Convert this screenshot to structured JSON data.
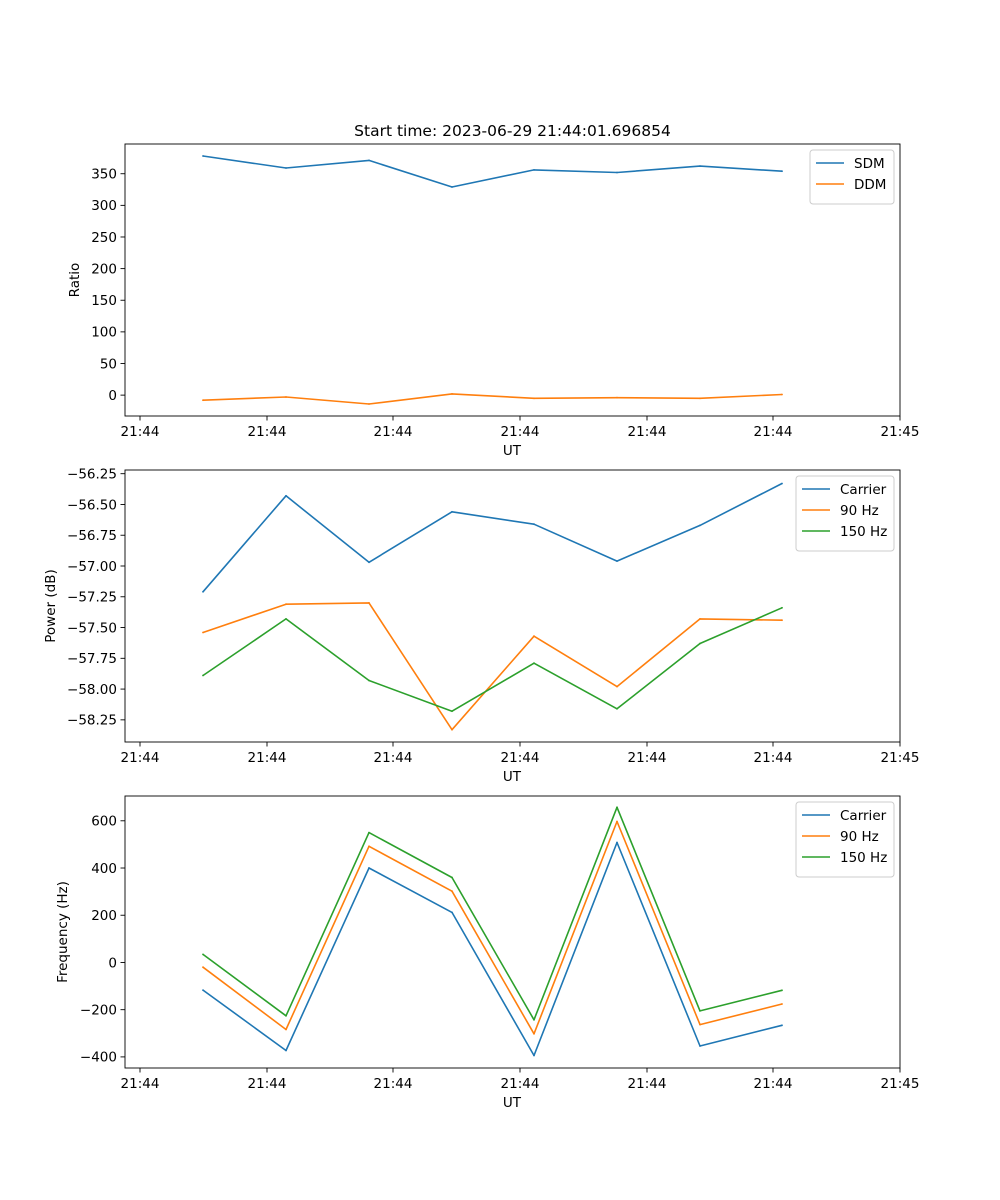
{
  "figure": {
    "title": "Start time: 2023-06-29 21:44:01.696854"
  },
  "colors": {
    "blue": "#1f77b4",
    "orange": "#ff7f0e",
    "green": "#2ca02c"
  },
  "chart_data": [
    {
      "type": "line",
      "xlabel": "UT",
      "ylabel": "Ratio",
      "x_ticks": [
        "21:44",
        "21:44",
        "21:44",
        "21:44",
        "21:44",
        "21:44",
        "21:44"
      ],
      "x_tick_labels": [
        "21:44",
        "21:44",
        "21:44",
        "21:44",
        "21:44",
        "21:44",
        "21:45"
      ],
      "y_ticks": [
        0,
        50,
        100,
        150,
        200,
        250,
        300,
        350
      ],
      "ylim": [
        -33,
        397
      ],
      "legend_position": "upper right",
      "series": [
        {
          "name": "SDM",
          "color": "#1f77b4",
          "values": [
            378,
            359,
            371,
            329,
            356,
            352,
            362,
            354
          ]
        },
        {
          "name": "DDM",
          "color": "#ff7f0e",
          "values": [
            -8,
            -3,
            -14,
            2,
            -5,
            -4,
            -5,
            1
          ]
        }
      ]
    },
    {
      "type": "line",
      "xlabel": "UT",
      "ylabel": "Power (dB)",
      "x_tick_labels": [
        "21:44",
        "21:44",
        "21:44",
        "21:44",
        "21:44",
        "21:44",
        "21:45"
      ],
      "y_ticks": [
        -58.25,
        -58.0,
        -57.75,
        -57.5,
        -57.25,
        -57.0,
        -56.75,
        -56.5,
        -56.25
      ],
      "y_tick_labels": [
        "−58.25",
        "−58.00",
        "−57.75",
        "−57.50",
        "−57.25",
        "−57.00",
        "−56.75",
        "−56.50",
        "−56.25"
      ],
      "ylim": [
        -58.43,
        -56.22
      ],
      "legend_position": "upper right",
      "series": [
        {
          "name": "Carrier",
          "color": "#1f77b4",
          "values": [
            -57.21,
            -56.43,
            -56.97,
            -56.56,
            -56.66,
            -56.96,
            -56.67,
            -56.33
          ]
        },
        {
          "name": "90 Hz",
          "color": "#ff7f0e",
          "values": [
            -57.54,
            -57.31,
            -57.3,
            -58.33,
            -57.57,
            -57.98,
            -57.43,
            -57.44
          ]
        },
        {
          "name": "150 Hz",
          "color": "#2ca02c",
          "values": [
            -57.89,
            -57.43,
            -57.93,
            -58.18,
            -57.79,
            -58.16,
            -57.63,
            -57.34
          ]
        }
      ]
    },
    {
      "type": "line",
      "xlabel": "UT",
      "ylabel": "Frequency (Hz)",
      "x_tick_labels": [
        "21:44",
        "21:44",
        "21:44",
        "21:44",
        "21:44",
        "21:44",
        "21:45"
      ],
      "y_ticks": [
        -400,
        -200,
        0,
        200,
        400,
        600
      ],
      "y_tick_labels": [
        "−400",
        "−200",
        "0",
        "200",
        "400",
        "600"
      ],
      "ylim": [
        -447,
        705
      ],
      "legend_position": "upper right",
      "series": [
        {
          "name": "Carrier",
          "color": "#1f77b4",
          "values": [
            -117,
            -373,
            400,
            212,
            -394,
            508,
            -354,
            -266
          ]
        },
        {
          "name": "90 Hz",
          "color": "#ff7f0e",
          "values": [
            -20,
            -284,
            492,
            302,
            -302,
            597,
            -263,
            -176
          ]
        },
        {
          "name": "150 Hz",
          "color": "#2ca02c",
          "values": [
            34,
            -226,
            550,
            360,
            -243,
            657,
            -205,
            -118
          ]
        }
      ]
    }
  ]
}
